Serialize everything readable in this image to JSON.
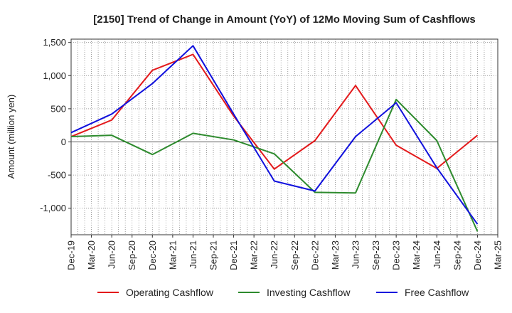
{
  "chart_data": {
    "type": "line",
    "title": "[2150]  Trend of Change in Amount (YoY) of 12Mo Moving Sum of Cashflows",
    "xlabel": "",
    "ylabel": "Amount (million yen)",
    "ylim": [
      -1400,
      1550
    ],
    "yticks": [
      1500,
      1000,
      500,
      0,
      -500,
      -1000
    ],
    "ytick_labels": [
      "1,500",
      "1,000",
      "500",
      "0",
      "-500",
      "-1,000"
    ],
    "categories": [
      "Dec-19",
      "Mar-20",
      "Jun-20",
      "Sep-20",
      "Dec-20",
      "Mar-21",
      "Jun-21",
      "Sep-21",
      "Dec-21",
      "Mar-22",
      "Jun-22",
      "Sep-22",
      "Dec-22",
      "Mar-23",
      "Jun-23",
      "Sep-23",
      "Dec-23",
      "Mar-24",
      "Jun-24",
      "Sep-24",
      "Dec-24",
      "Mar-25"
    ],
    "grid": true,
    "legend_position": "bottom",
    "series": [
      {
        "name": "Operating Cashflow",
        "color": "#e31a1c",
        "points": [
          [
            "Dec-19",
            80
          ],
          [
            "Jun-20",
            330
          ],
          [
            "Dec-20",
            1080
          ],
          [
            "Jun-21",
            1320
          ],
          [
            "Dec-21",
            390
          ],
          [
            "Jun-22",
            -410
          ],
          [
            "Dec-22",
            20
          ],
          [
            "Jun-23",
            850
          ],
          [
            "Dec-23",
            -50
          ],
          [
            "Jun-24",
            -400
          ],
          [
            "Dec-24",
            100
          ]
        ]
      },
      {
        "name": "Investing Cashflow",
        "color": "#2e8b2e",
        "points": [
          [
            "Dec-19",
            80
          ],
          [
            "Jun-20",
            100
          ],
          [
            "Dec-20",
            -190
          ],
          [
            "Jun-21",
            130
          ],
          [
            "Dec-21",
            30
          ],
          [
            "Jun-22",
            -180
          ],
          [
            "Dec-22",
            -760
          ],
          [
            "Jun-23",
            -770
          ],
          [
            "Dec-23",
            640
          ],
          [
            "Jun-24",
            20
          ],
          [
            "Dec-24",
            -1350
          ]
        ]
      },
      {
        "name": "Free Cashflow",
        "color": "#1010dd",
        "points": [
          [
            "Dec-19",
            140
          ],
          [
            "Jun-20",
            420
          ],
          [
            "Dec-20",
            880
          ],
          [
            "Jun-21",
            1450
          ],
          [
            "Dec-21",
            420
          ],
          [
            "Jun-22",
            -590
          ],
          [
            "Dec-22",
            -740
          ],
          [
            "Jun-23",
            80
          ],
          [
            "Dec-23",
            590
          ],
          [
            "Jun-24",
            -390
          ],
          [
            "Dec-24",
            -1240
          ]
        ]
      }
    ]
  }
}
